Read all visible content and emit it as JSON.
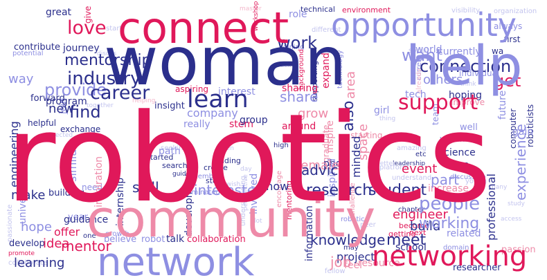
{
  "palette": {
    "navy": "#2b2f8c",
    "crimson": "#e0185a",
    "pink": "#ee8aa8",
    "lavender": "#8e8fe2",
    "rose": "#f3b9cc",
    "lilac": "#c3c4ee"
  },
  "words": [
    {
      "id": "robotics",
      "text": "robotics",
      "color": "crimson"
    },
    {
      "id": "woman",
      "text": "woman",
      "color": "navy"
    },
    {
      "id": "community",
      "text": "community",
      "color": "pink"
    },
    {
      "id": "network",
      "text": "network",
      "color": "lavender"
    },
    {
      "id": "connect",
      "text": "connect",
      "color": "crimson"
    },
    {
      "id": "help",
      "text": "help",
      "color": "lavender"
    },
    {
      "id": "opportunity",
      "text": "opportunity",
      "color": "lavender"
    },
    {
      "id": "networking",
      "text": "networking",
      "color": "crimson"
    },
    {
      "id": "learn",
      "text": "learn",
      "color": "navy"
    },
    {
      "id": "love",
      "text": "love",
      "color": "crimson"
    },
    {
      "id": "industry",
      "text": "industry",
      "color": "navy"
    },
    {
      "id": "mentorship",
      "text": "mentorship",
      "color": "navy"
    },
    {
      "id": "career",
      "text": "career",
      "color": "navy"
    },
    {
      "id": "provide",
      "text": "provide",
      "color": "lavender"
    },
    {
      "id": "work",
      "text": "work",
      "color": "navy"
    },
    {
      "id": "want",
      "text": "want",
      "color": "lavender"
    },
    {
      "id": "connection",
      "text": "connection",
      "color": "navy"
    },
    {
      "id": "get",
      "text": "get",
      "color": "crimson"
    },
    {
      "id": "support",
      "text": "support",
      "color": "crimson"
    },
    {
      "id": "find",
      "text": "find",
      "color": "navy"
    },
    {
      "id": "people",
      "text": "people",
      "color": "lavender"
    },
    {
      "id": "experience",
      "text": "experience",
      "color": "lavender"
    },
    {
      "id": "meet",
      "text": "meet",
      "color": "navy"
    },
    {
      "id": "research",
      "text": "research",
      "color": "navy"
    },
    {
      "id": "student",
      "text": "student",
      "color": "navy"
    },
    {
      "id": "interested",
      "text": "interested",
      "color": "lavender"
    },
    {
      "id": "skill",
      "text": "skill",
      "color": "navy"
    },
    {
      "id": "working",
      "text": "working",
      "color": "lavender"
    },
    {
      "id": "also",
      "text": "also",
      "color": "navy"
    },
    {
      "id": "share",
      "text": "share",
      "color": "lavender"
    },
    {
      "id": "new",
      "text": "new",
      "color": "navy"
    },
    {
      "id": "way",
      "text": "way",
      "color": "lavender"
    },
    {
      "id": "knowledge",
      "text": "knowledge",
      "color": "navy"
    },
    {
      "id": "mentor",
      "text": "mentor",
      "color": "crimson"
    },
    {
      "id": "job",
      "text": "job",
      "color": "pink"
    },
    {
      "id": "part",
      "text": "part",
      "color": "lavender"
    },
    {
      "id": "space",
      "text": "space",
      "color": "pink"
    },
    {
      "id": "grow",
      "text": "grow",
      "color": "pink"
    },
    {
      "id": "area",
      "text": "area",
      "color": "pink"
    },
    {
      "id": "advice",
      "text": "advice",
      "color": "navy"
    },
    {
      "id": "event",
      "text": "event",
      "color": "crimson"
    },
    {
      "id": "female",
      "text": "female",
      "color": "pink"
    },
    {
      "id": "minded",
      "text": "minded",
      "color": "navy"
    },
    {
      "id": "make",
      "text": "make",
      "color": "navy"
    },
    {
      "id": "hope",
      "text": "hope",
      "color": "lavender"
    },
    {
      "id": "idea",
      "text": "idea",
      "color": "crimson"
    },
    {
      "id": "offer",
      "text": "offer",
      "color": "crimson"
    },
    {
      "id": "learning",
      "text": "learning",
      "color": "navy"
    },
    {
      "id": "company",
      "text": "company",
      "color": "lavender"
    },
    {
      "id": "build",
      "text": "build",
      "color": "navy"
    },
    {
      "id": "engineer",
      "text": "engineer",
      "color": "crimson"
    },
    {
      "id": "project",
      "text": "project",
      "color": "navy"
    },
    {
      "id": "professional",
      "text": "professional",
      "color": "navy"
    },
    {
      "id": "engineering",
      "text": "engineering",
      "color": "navy"
    },
    {
      "id": "similar",
      "text": "similar",
      "color": "lavender"
    },
    {
      "id": "know",
      "text": "know",
      "color": "navy"
    },
    {
      "id": "others",
      "text": "others",
      "color": "lavender"
    },
    {
      "id": "world",
      "text": "world",
      "color": "lavender"
    },
    {
      "id": "currently",
      "text": "currently",
      "color": "lavender"
    },
    {
      "id": "program",
      "text": "program",
      "color": "navy"
    },
    {
      "id": "guidance",
      "text": "guidance",
      "color": "navy"
    },
    {
      "id": "contribute",
      "text": "contribute",
      "color": "navy"
    },
    {
      "id": "great",
      "text": "great",
      "color": "navy"
    },
    {
      "id": "journey",
      "text": "journey",
      "color": "navy"
    },
    {
      "id": "role",
      "text": "role",
      "color": "lavender"
    },
    {
      "id": "expand",
      "text": "expand",
      "color": "crimson"
    },
    {
      "id": "sharing",
      "text": "sharing",
      "color": "crimson"
    },
    {
      "id": "interest",
      "text": "interest",
      "color": "lavender"
    },
    {
      "id": "tech",
      "text": "tech",
      "color": "lavender"
    },
    {
      "id": "girl",
      "text": "girl",
      "color": "lavender"
    },
    {
      "id": "future",
      "text": "future",
      "color": "lavender"
    },
    {
      "id": "gain",
      "text": "gain",
      "color": "lavender"
    },
    {
      "id": "hoping",
      "text": "hoping",
      "color": "navy"
    },
    {
      "id": "stem",
      "text": "stem",
      "color": "crimson"
    },
    {
      "id": "really",
      "text": "really",
      "color": "lavender"
    },
    {
      "id": "forward",
      "text": "forward",
      "color": "navy"
    },
    {
      "id": "join",
      "text": "join",
      "color": "lavender"
    },
    {
      "id": "inspire",
      "text": "inspire",
      "color": "pink"
    },
    {
      "id": "around",
      "text": "around",
      "color": "crimson"
    },
    {
      "id": "group",
      "text": "group",
      "color": "navy"
    },
    {
      "id": "university",
      "text": "university",
      "color": "lavender"
    },
    {
      "id": "inspiration",
      "text": "inspiration",
      "color": "pink"
    },
    {
      "id": "internship",
      "text": "internship",
      "color": "navy"
    },
    {
      "id": "path",
      "text": "path",
      "color": "lavender"
    },
    {
      "id": "development",
      "text": "development",
      "color": "navy"
    },
    {
      "id": "involved",
      "text": "involved",
      "color": "lavender"
    },
    {
      "id": "phd",
      "text": "phd",
      "color": "navy"
    },
    {
      "id": "inspired",
      "text": "inspired",
      "color": "lavender"
    },
    {
      "id": "information",
      "text": "information",
      "color": "navy"
    },
    {
      "id": "see",
      "text": "see",
      "color": "navy"
    },
    {
      "id": "science",
      "text": "science",
      "color": "navy"
    },
    {
      "id": "increase",
      "text": "increase",
      "color": "pink"
    },
    {
      "id": "related",
      "text": "related",
      "color": "lavender"
    },
    {
      "id": "school",
      "text": "school",
      "color": "navy"
    },
    {
      "id": "talk",
      "text": "talk",
      "color": "navy"
    },
    {
      "id": "collaboration",
      "text": "collaboration",
      "color": "crimson"
    },
    {
      "id": "believe",
      "text": "believe",
      "color": "lavender"
    },
    {
      "id": "robot",
      "text": "robot",
      "color": "lavender"
    },
    {
      "id": "year",
      "text": "year",
      "color": "lavender"
    },
    {
      "id": "resource",
      "text": "resource",
      "color": "pink"
    },
    {
      "id": "feel",
      "text": "feel",
      "color": "pink"
    },
    {
      "id": "researcher",
      "text": "researcher",
      "color": "navy"
    },
    {
      "id": "passion",
      "text": "passion",
      "color": "pink"
    },
    {
      "id": "develop",
      "text": "develop",
      "color": "navy"
    },
    {
      "id": "need",
      "text": "need",
      "color": "lavender"
    },
    {
      "id": "mentoring",
      "text": "mentoring",
      "color": "crimson"
    },
    {
      "id": "graduate",
      "text": "graduate",
      "color": "pink"
    },
    {
      "id": "starting",
      "text": "starting",
      "color": "pink"
    },
    {
      "id": "team",
      "text": "team",
      "color": "lavender"
    },
    {
      "id": "within",
      "text": "within",
      "color": "lavender"
    },
    {
      "id": "well",
      "text": "well",
      "color": "lavender"
    },
    {
      "id": "individual",
      "text": "individual",
      "color": "lavender"
    },
    {
      "id": "improve",
      "text": "improve",
      "color": "pink"
    },
    {
      "id": "computer",
      "text": "computer",
      "color": "navy"
    },
    {
      "id": "roboticists",
      "text": "roboticists",
      "color": "navy"
    },
    {
      "id": "always",
      "text": "always",
      "color": "lavender"
    },
    {
      "id": "wa",
      "text": "wa",
      "color": "navy"
    },
    {
      "id": "first",
      "text": "first",
      "color": "navy"
    },
    {
      "id": "environment",
      "text": "environment",
      "color": "crimson"
    },
    {
      "id": "technical",
      "text": "technical",
      "color": "navy"
    },
    {
      "id": "master",
      "text": "master",
      "color": "rose"
    },
    {
      "id": "workshop",
      "text": "workshop",
      "color": "crimson"
    },
    {
      "id": "different",
      "text": "different",
      "color": "lilac"
    },
    {
      "id": "visibility",
      "text": "visibility",
      "color": "lilac"
    },
    {
      "id": "organization",
      "text": "organization",
      "color": "lilac"
    },
    {
      "id": "give",
      "text": "give",
      "color": "crimson"
    },
    {
      "id": "potential",
      "text": "potential",
      "color": "lavender"
    },
    {
      "id": "start",
      "text": "start",
      "color": "lilac"
    },
    {
      "id": "joining",
      "text": "joining",
      "color": "lavender"
    },
    {
      "id": "back",
      "text": "back",
      "color": "lilac"
    },
    {
      "id": "background",
      "text": "background",
      "color": "crimson"
    },
    {
      "id": "supporting",
      "text": "supporting",
      "color": "navy"
    },
    {
      "id": "technology",
      "text": "technology",
      "color": "lavender"
    },
    {
      "id": "social",
      "text": "social",
      "color": "lilac"
    },
    {
      "id": "current",
      "text": "current",
      "color": "lavender"
    },
    {
      "id": "already",
      "text": "already",
      "color": "rose"
    },
    {
      "id": "think",
      "text": "think",
      "color": "lilac"
    },
    {
      "id": "discus",
      "text": "discus",
      "color": "lilac"
    },
    {
      "id": "aspiring",
      "text": "aspiring",
      "color": "crimson"
    },
    {
      "id": "together",
      "text": "together",
      "color": "lilac"
    },
    {
      "id": "helping",
      "text": "helping",
      "color": "rose"
    },
    {
      "id": "insight",
      "text": "insight",
      "color": "navy"
    },
    {
      "id": "exchange",
      "text": "exchange",
      "color": "navy"
    },
    {
      "id": "connected",
      "text": "connected",
      "color": "lilac"
    },
    {
      "id": "helpful",
      "text": "helpful",
      "color": "navy"
    },
    {
      "id": "etc",
      "text": "etc",
      "color": "navy"
    },
    {
      "id": "high",
      "text": "high",
      "color": "navy"
    },
    {
      "id": "seeking",
      "text": "seeking",
      "color": "lilac"
    },
    {
      "id": "started",
      "text": "started",
      "color": "navy"
    },
    {
      "id": "search",
      "text": "search",
      "color": "navy"
    },
    {
      "id": "building",
      "text": "building",
      "color": "navy"
    },
    {
      "id": "men",
      "text": "men",
      "color": "lilac"
    },
    {
      "id": "finding",
      "text": "finding",
      "color": "navy"
    },
    {
      "id": "create",
      "text": "create",
      "color": "navy"
    },
    {
      "id": "day",
      "text": "day",
      "color": "lilac"
    },
    {
      "id": "story",
      "text": "story",
      "color": "navy"
    },
    {
      "id": "guide",
      "text": "guide",
      "color": "navy"
    },
    {
      "id": "wish",
      "text": "wish",
      "color": "lilac"
    },
    {
      "id": "member",
      "text": "member",
      "color": "lavender"
    },
    {
      "id": "dominated",
      "text": "dominated",
      "color": "lavender"
    },
    {
      "id": "leadership",
      "text": "leadership",
      "color": "navy"
    },
    {
      "id": "amazing",
      "text": "amazing",
      "color": "lilac"
    },
    {
      "id": "better",
      "text": "better",
      "color": "lilac"
    },
    {
      "id": "platform",
      "text": "platform",
      "color": "lilac"
    },
    {
      "id": "discussion",
      "text": "discussion",
      "color": "lavender"
    },
    {
      "id": "understanding",
      "text": "understanding",
      "color": "lilac"
    },
    {
      "id": "understand",
      "text": "understand",
      "color": "lilac"
    },
    {
      "id": "young",
      "text": "young",
      "color": "lilac"
    },
    {
      "id": "thing",
      "text": "thing",
      "color": "lilac"
    },
    {
      "id": "many",
      "text": "many",
      "color": "lilac"
    },
    {
      "id": "study",
      "text": "study",
      "color": "lilac"
    },
    {
      "id": "growth",
      "text": "growth",
      "color": "lavender"
    },
    {
      "id": "one",
      "text": "one",
      "color": "navy"
    },
    {
      "id": "passionate",
      "text": "passionate",
      "color": "lilac"
    },
    {
      "id": "promote",
      "text": "promote",
      "color": "crimson"
    },
    {
      "id": "collaborate",
      "text": "collaborate",
      "color": "lilac"
    },
    {
      "id": "perspective",
      "text": "perspective",
      "color": "lilac"
    },
    {
      "id": "lot",
      "text": "lot",
      "color": "lilac"
    },
    {
      "id": "chapter",
      "text": "chapter",
      "color": "navy"
    },
    {
      "id": "become",
      "text": "become",
      "color": "crimson"
    },
    {
      "id": "next",
      "text": "next",
      "color": "crimson"
    },
    {
      "id": "getting",
      "text": "getting",
      "color": "crimson"
    },
    {
      "id": "encourage",
      "text": "encourage",
      "color": "pink"
    },
    {
      "id": "may",
      "text": "may",
      "color": "navy"
    },
    {
      "id": "fellow",
      "text": "fellow",
      "color": "lilac"
    },
    {
      "id": "domain",
      "text": "domain",
      "color": "lavender"
    },
    {
      "id": "access",
      "text": "access",
      "color": "lilac"
    },
    {
      "id": "peer",
      "text": "peer",
      "color": "lilac"
    },
    {
      "id": "robotic",
      "text": "robotic",
      "color": "lavender"
    },
    {
      "id": "challenge",
      "text": "challenge",
      "color": "pink"
    }
  ]
}
